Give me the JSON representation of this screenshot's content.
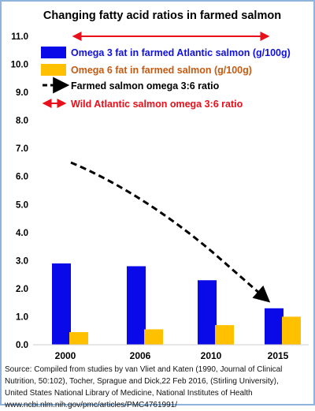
{
  "chart_data": {
    "type": "bar",
    "title": "Changing fatty acid ratios in farmed salmon",
    "categories": [
      "2000",
      "2006",
      "2010",
      "2015"
    ],
    "ylim": [
      0,
      11
    ],
    "yticks": [
      "0.0",
      "1.0",
      "2.0",
      "3.0",
      "4.0",
      "5.0",
      "6.0",
      "7.0",
      "8.0",
      "9.0",
      "10.0",
      "11.0"
    ],
    "grid": false,
    "legend_placement": "top",
    "series": [
      {
        "name": "Omega 3 fat in farmed Atlantic salmon (g/100g)",
        "values": [
          2.9,
          2.8,
          2.3,
          1.3
        ],
        "color": "#0a0ae8"
      },
      {
        "name": "Omega 6 fat in farmed salmon (g/100g)",
        "values": [
          0.45,
          0.55,
          0.7,
          1.0
        ],
        "color": "#ffc000"
      }
    ],
    "lines": [
      {
        "name": "Farmed salmon omega 3:6 ratio",
        "style": "dashed-arrow",
        "color": "#000000",
        "values": [
          6.5,
          5.2,
          3.3,
          1.3
        ]
      },
      {
        "name": "Wild Atlantic salmon omega 3:6 ratio",
        "style": "double-arrow",
        "color": "#e8101a",
        "value": 11.0
      }
    ],
    "legend_text_colors": [
      "#1010e0",
      "#c55a11",
      "#000000",
      "#e8101a"
    ]
  },
  "source_lines": [
    "Source: Compiled from studies by van Vliet and Katen (1990, Journal of Clinical",
    "Nutrition, 50:102), Tocher, Sprague and Dick,22 Feb 2016, (Stirling University),",
    "United States National Library of Medicine, National Institutes of Health",
    "www.ncbi.nlm.nih.gov/pmc/articles/PMC4761991/"
  ]
}
